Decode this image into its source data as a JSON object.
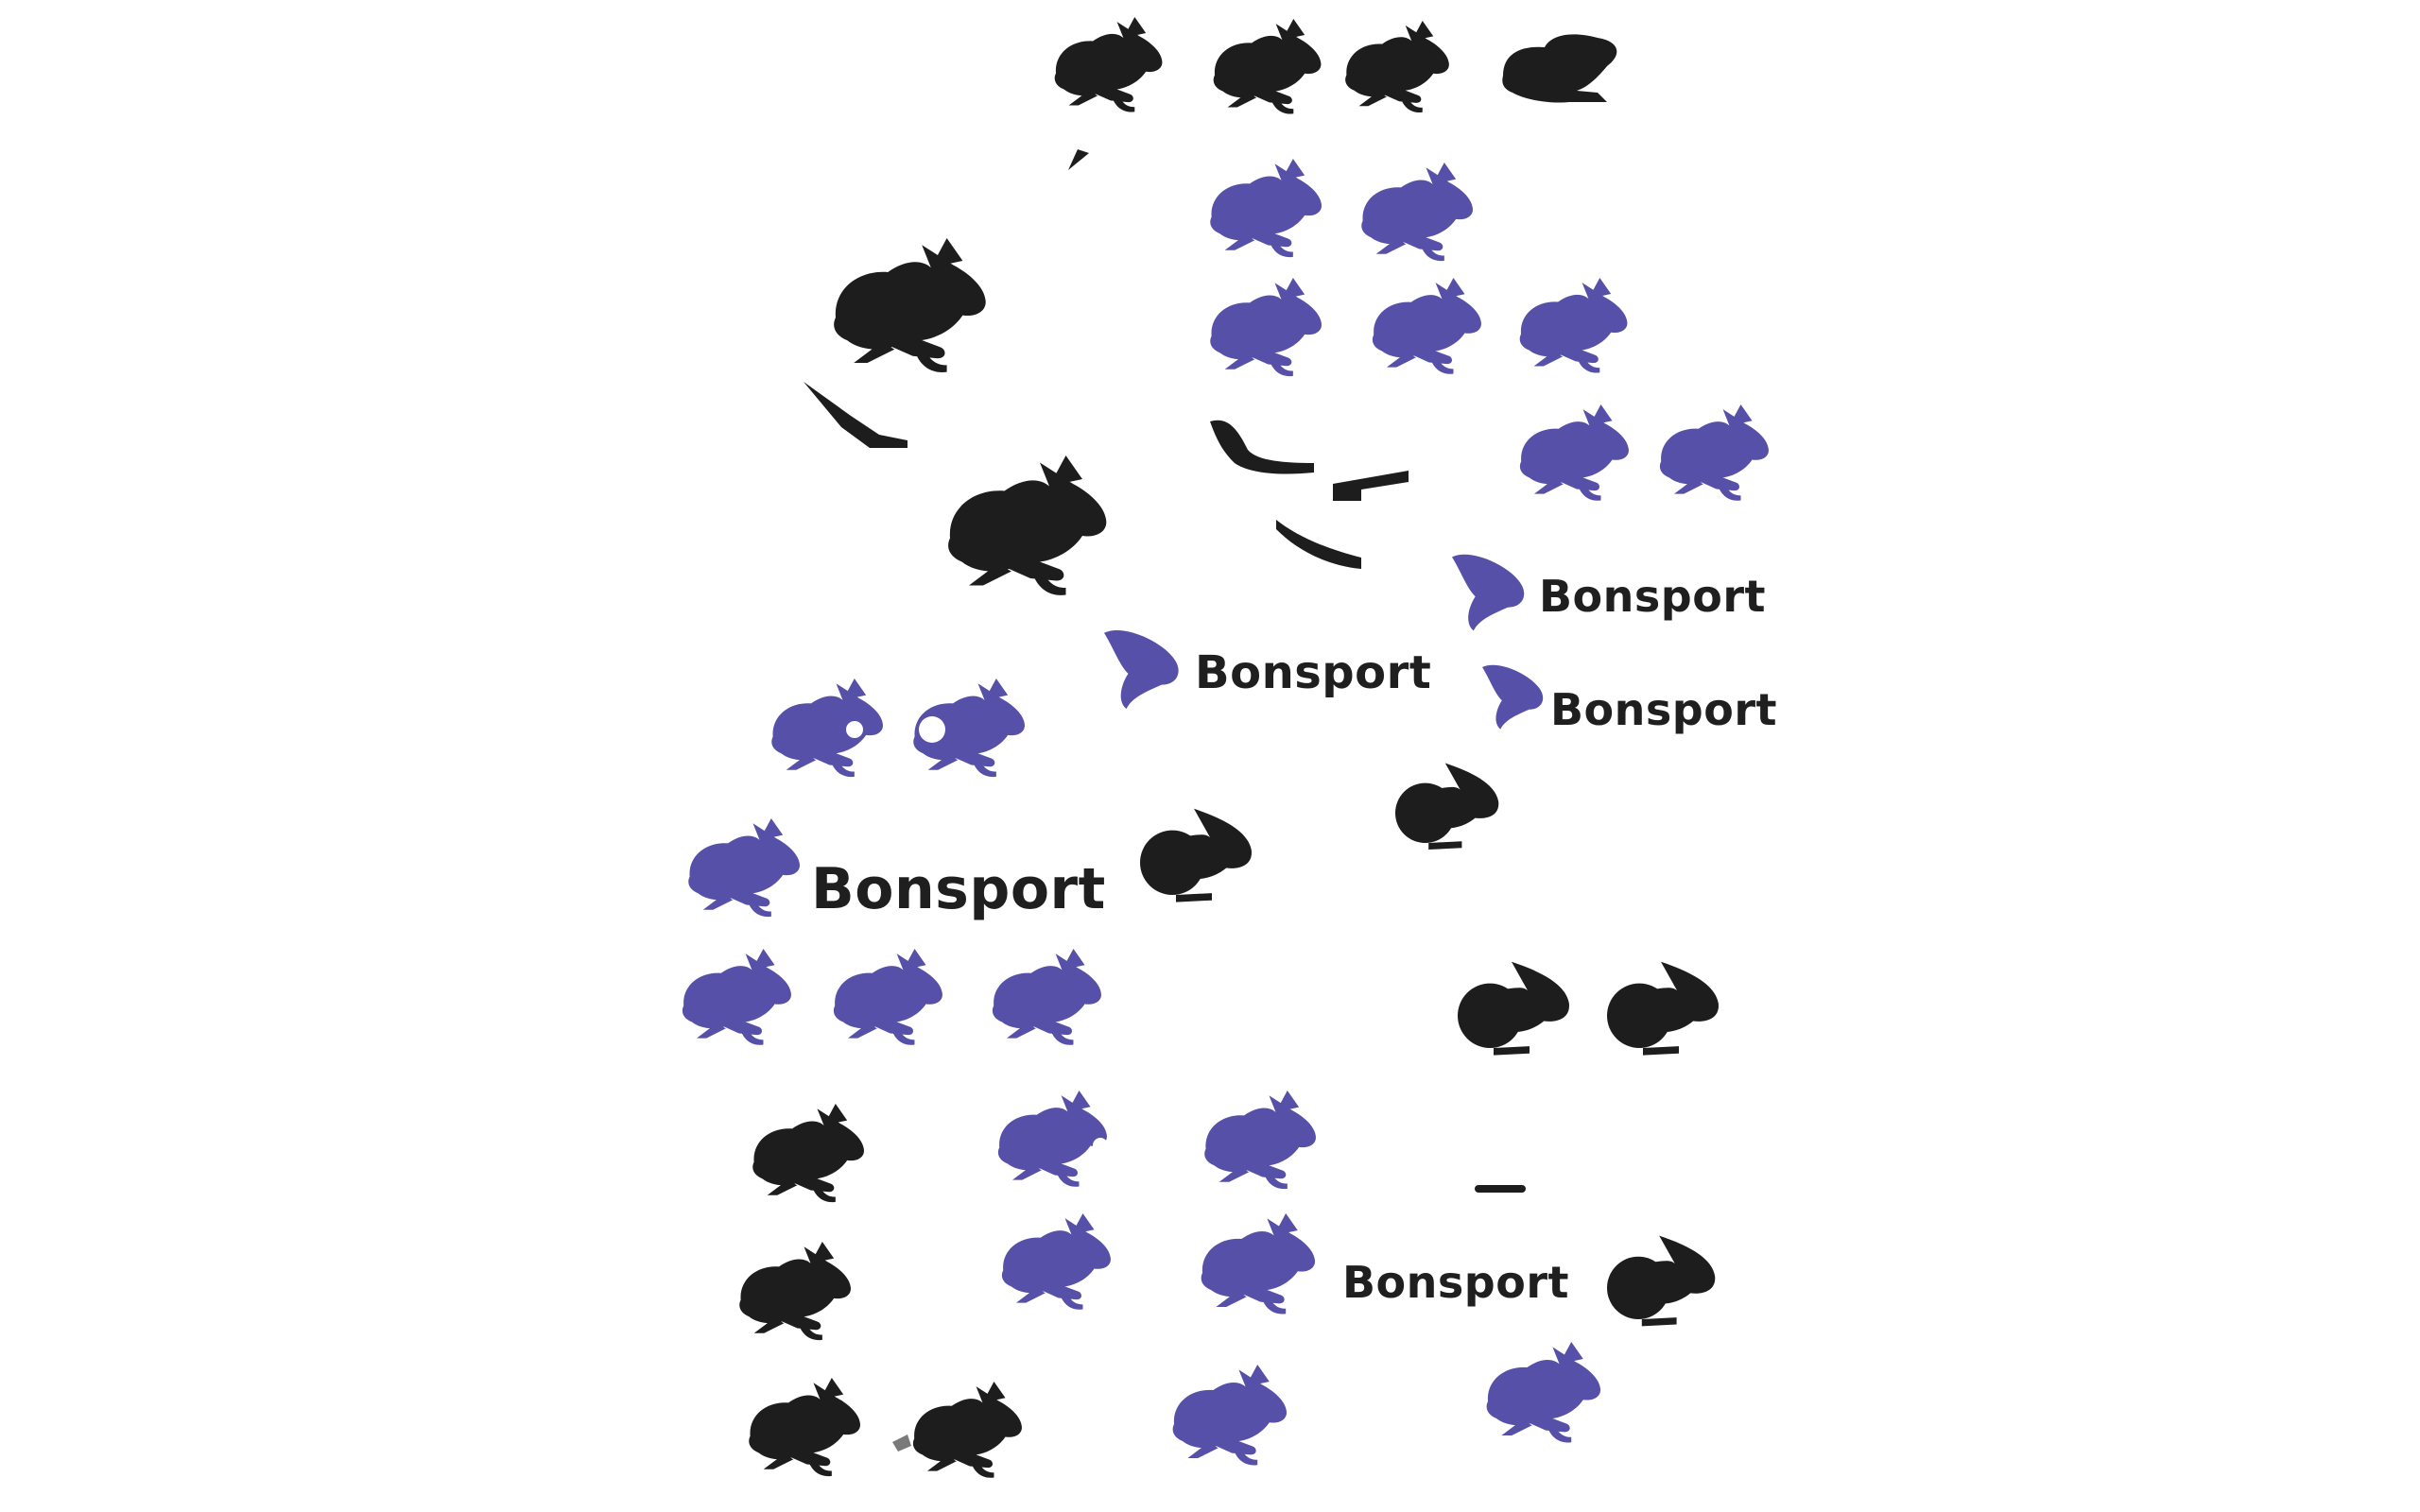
{
  "brand": "Bonsport",
  "palette": {
    "black": "#1d1d1d",
    "blue": "#5750a8",
    "gray": "#7a7a7a"
  },
  "icons": [
    "rabbit-icon",
    "rabbit-head-icon",
    "rabbit-with-eye-icon",
    "rabbit-with-ring-icon",
    "rabbit-round-body-icon",
    "rabbit-ear-fragment-icon"
  ],
  "wordmarks": [
    {
      "id": "wordmark-1",
      "text": "Bonsport"
    },
    {
      "id": "wordmark-2",
      "text": "Bonsport"
    },
    {
      "id": "wordmark-3",
      "text": "Bonsport"
    },
    {
      "id": "wordmark-4",
      "text": "Bonsport"
    },
    {
      "id": "wordmark-5",
      "text": "Bonsport"
    }
  ]
}
